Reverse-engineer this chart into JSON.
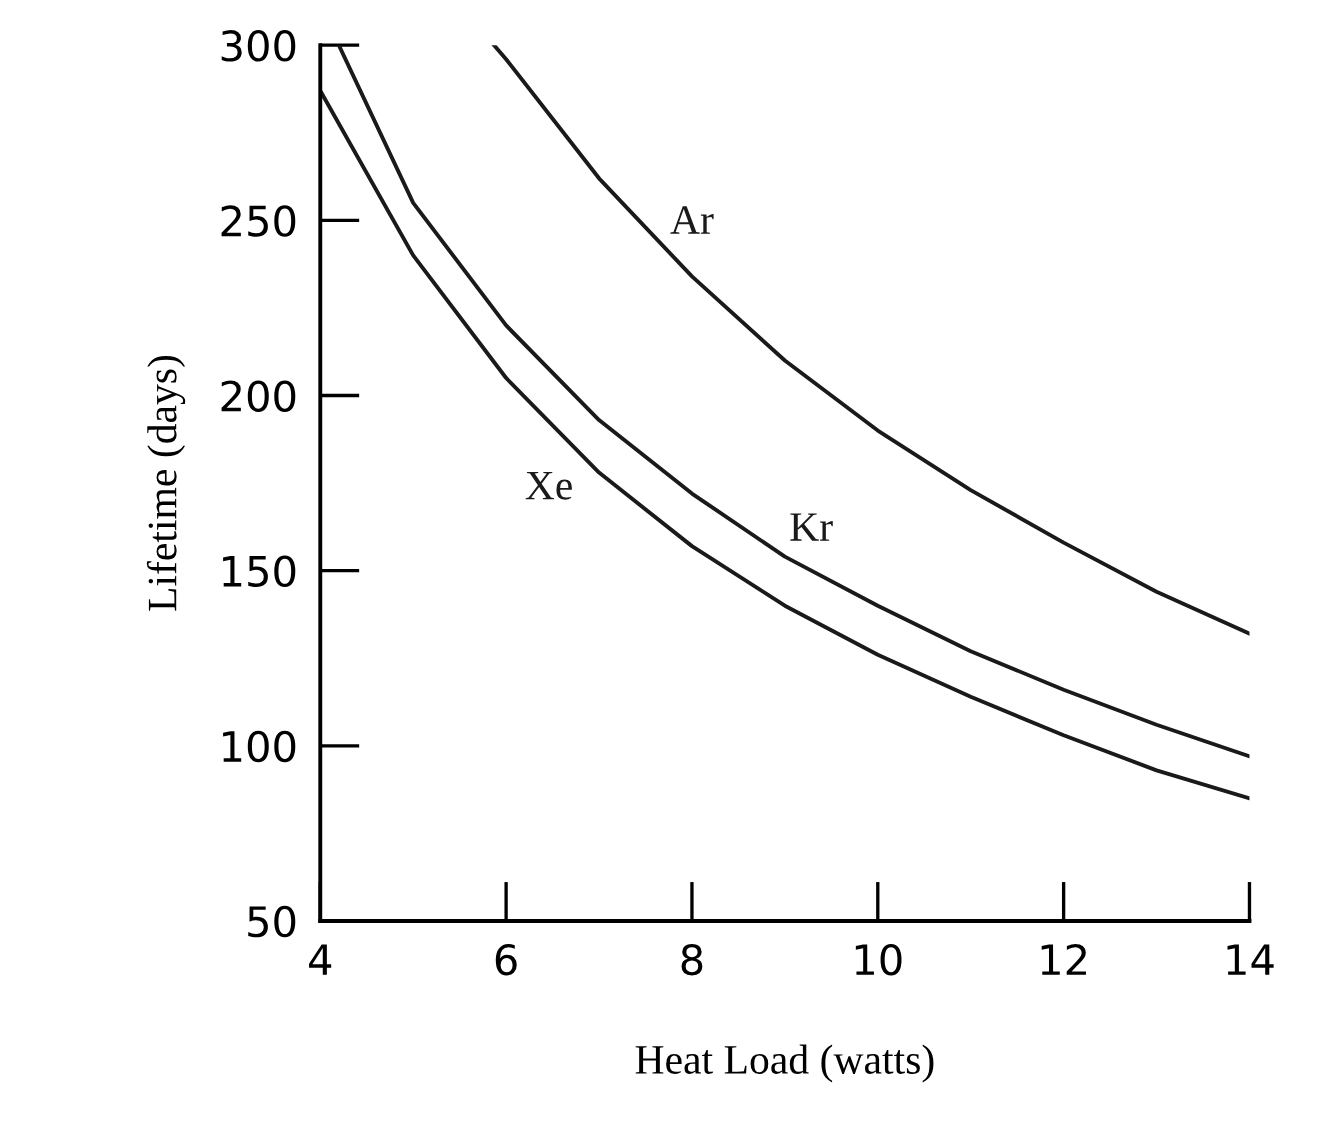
{
  "chart_data": {
    "type": "line",
    "xlabel": "Heat Load (watts)",
    "ylabel": "Lifetime (days)",
    "xlim": [
      4,
      14
    ],
    "ylim": [
      50,
      300
    ],
    "xticks": [
      4,
      6,
      8,
      10,
      12,
      14
    ],
    "yticks": [
      50,
      100,
      150,
      200,
      250,
      300
    ],
    "grid": false,
    "legend": false,
    "marker": "none",
    "line_style": "solid",
    "series": [
      {
        "name": "Ar",
        "color": "#1a1a1a",
        "x": [
          5.87,
          6,
          7,
          8,
          9,
          10,
          11,
          12,
          13,
          14
        ],
        "values": [
          300,
          296,
          262,
          234,
          210,
          190,
          173,
          158,
          144,
          132
        ]
      },
      {
        "name": "Kr",
        "color": "#1a1a1a",
        "x": [
          4.2,
          5,
          6,
          7,
          8,
          9,
          10,
          11,
          12,
          13,
          14
        ],
        "values": [
          300,
          255,
          220,
          193,
          172,
          154,
          140,
          127,
          116,
          106,
          97
        ]
      },
      {
        "name": "Xe",
        "color": "#1a1a1a",
        "x": [
          4,
          5,
          6,
          7,
          8,
          9,
          10,
          11,
          12,
          13,
          14
        ],
        "values": [
          287,
          240,
          205,
          178,
          157,
          140,
          126,
          114,
          103,
          93,
          85
        ]
      }
    ]
  }
}
